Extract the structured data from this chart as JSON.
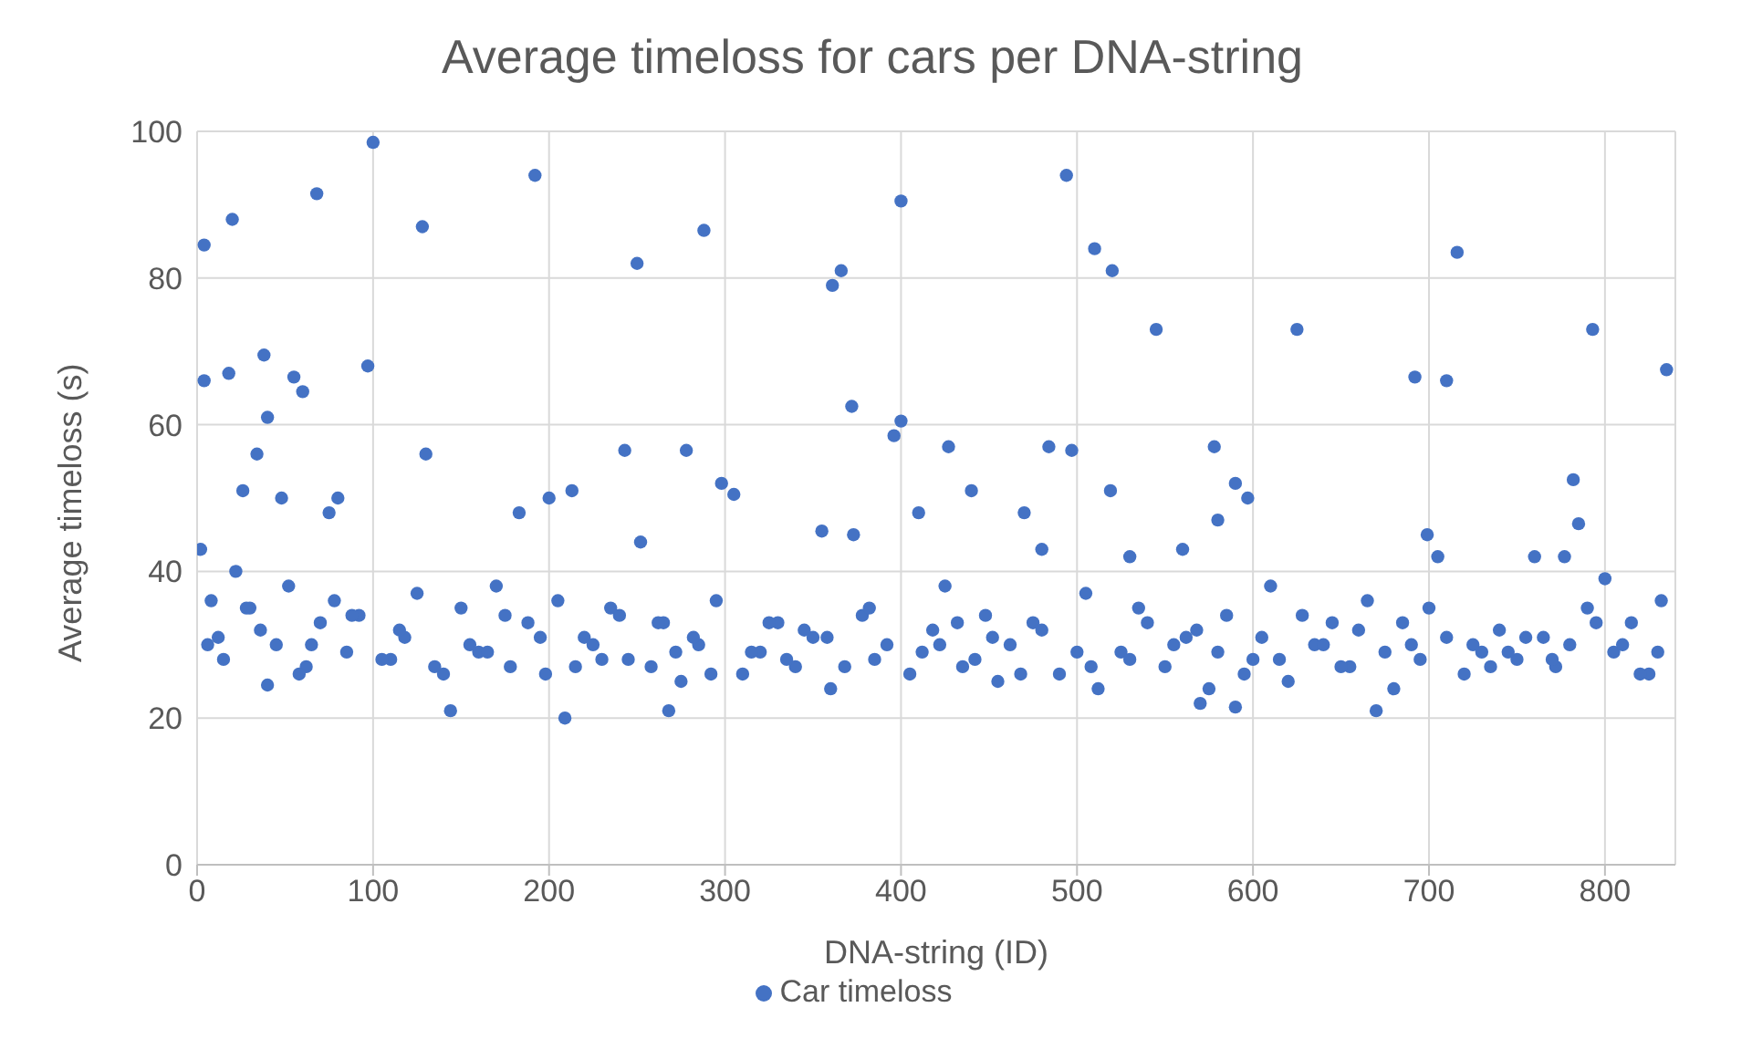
{
  "chart_data": {
    "type": "scatter",
    "title": "Average timeloss for cars per DNA-string",
    "xlabel": "DNA-string (ID)",
    "ylabel": "Average timeloss (s)",
    "xlim": [
      0,
      840
    ],
    "xticks": [
      0,
      100,
      200,
      300,
      400,
      500,
      600,
      700,
      800
    ],
    "ylim": [
      0,
      100
    ],
    "yticks": [
      0,
      20,
      40,
      60,
      80,
      100
    ],
    "grid": true,
    "legend": "bottom",
    "marker": "circle",
    "series": [
      {
        "name": "Car timeloss",
        "color": "#4472c4",
        "x": [
          4,
          4,
          20,
          18,
          38,
          34,
          40,
          55,
          60,
          68,
          100,
          97,
          128,
          192,
          250,
          288,
          130,
          243,
          278,
          298,
          305,
          361,
          366,
          372,
          396,
          400,
          400,
          427,
          494,
          497,
          510,
          520,
          545,
          519,
          578,
          590,
          597,
          625,
          692,
          710,
          716,
          782,
          793,
          835,
          785,
          26,
          48,
          75,
          80,
          183,
          200,
          213,
          252,
          355,
          373,
          410,
          440,
          470,
          484,
          480,
          530,
          560,
          580,
          699,
          705,
          760,
          777,
          800,
          40,
          144,
          209,
          268,
          570,
          590,
          670,
          2,
          8,
          12,
          22,
          30,
          45,
          52,
          62,
          70,
          85,
          92,
          110,
          118,
          125,
          140,
          150,
          160,
          170,
          178,
          188,
          198,
          205,
          220,
          230,
          240,
          258,
          265,
          275,
          285,
          295,
          310,
          320,
          330,
          340,
          350,
          360,
          378,
          385,
          392,
          405,
          418,
          425,
          435,
          448,
          455,
          462,
          475,
          490,
          505,
          512,
          525,
          535,
          550,
          562,
          575,
          585,
          600,
          610,
          620,
          635,
          645,
          655,
          665,
          680,
          690,
          700,
          720,
          730,
          740,
          750,
          765,
          772,
          790,
          805,
          815,
          825,
          832,
          6,
          15,
          28,
          36,
          58,
          65,
          78,
          88,
          105,
          115,
          135,
          155,
          165,
          175,
          195,
          215,
          225,
          235,
          245,
          262,
          272,
          282,
          292,
          315,
          325,
          335,
          345,
          358,
          368,
          382,
          412,
          422,
          432,
          442,
          452,
          468,
          480,
          500,
          508,
          530,
          540,
          555,
          568,
          580,
          595,
          605,
          615,
          628,
          640,
          650,
          660,
          675,
          685,
          695,
          710,
          725,
          735,
          745,
          755,
          770,
          780,
          795,
          810,
          820,
          830
        ],
        "values": [
          84.5,
          66,
          88,
          67,
          69.5,
          56,
          61,
          66.5,
          64.5,
          91.5,
          98.5,
          68,
          87,
          94,
          82,
          86.5,
          56,
          56.5,
          56.5,
          52,
          50.5,
          79,
          81,
          62.5,
          58.5,
          90.5,
          60.5,
          57,
          94,
          56.5,
          84,
          81,
          73,
          51,
          57,
          52,
          50,
          73,
          66.5,
          66,
          83.5,
          52.5,
          73,
          67.5,
          46.5,
          51,
          50,
          48,
          50,
          48,
          50,
          51,
          44,
          45.5,
          45,
          48,
          51,
          48,
          57,
          43,
          42,
          43,
          47,
          45,
          42,
          42,
          42,
          39,
          24.5,
          21,
          20,
          21,
          22,
          21.5,
          21,
          43,
          36,
          31,
          40,
          35,
          30,
          38,
          27,
          33,
          29,
          34,
          28,
          31,
          37,
          26,
          35,
          29,
          38,
          27,
          33,
          26,
          36,
          31,
          28,
          34,
          27,
          33,
          25,
          30,
          36,
          26,
          29,
          33,
          27,
          31,
          24,
          34,
          28,
          30,
          26,
          32,
          38,
          27,
          34,
          25,
          30,
          33,
          26,
          37,
          24,
          29,
          35,
          27,
          31,
          24,
          34,
          28,
          38,
          25,
          30,
          33,
          27,
          36,
          24,
          30,
          35,
          26,
          29,
          32,
          28,
          31,
          27,
          35,
          29,
          33,
          26,
          36,
          30,
          28,
          35,
          32,
          26,
          30,
          36,
          34,
          28,
          32,
          27,
          30,
          29,
          34,
          31,
          27,
          30,
          35,
          28,
          33,
          29,
          31,
          26,
          29,
          33,
          28,
          32,
          31,
          27,
          35,
          29,
          30,
          33,
          28,
          31,
          26,
          32,
          29,
          27,
          28,
          33,
          30,
          32,
          29,
          26,
          31,
          28,
          34,
          30,
          27,
          32,
          29,
          33,
          28,
          31,
          30,
          27,
          29,
          31,
          28,
          30,
          33,
          30,
          26,
          29
        ]
      }
    ]
  }
}
